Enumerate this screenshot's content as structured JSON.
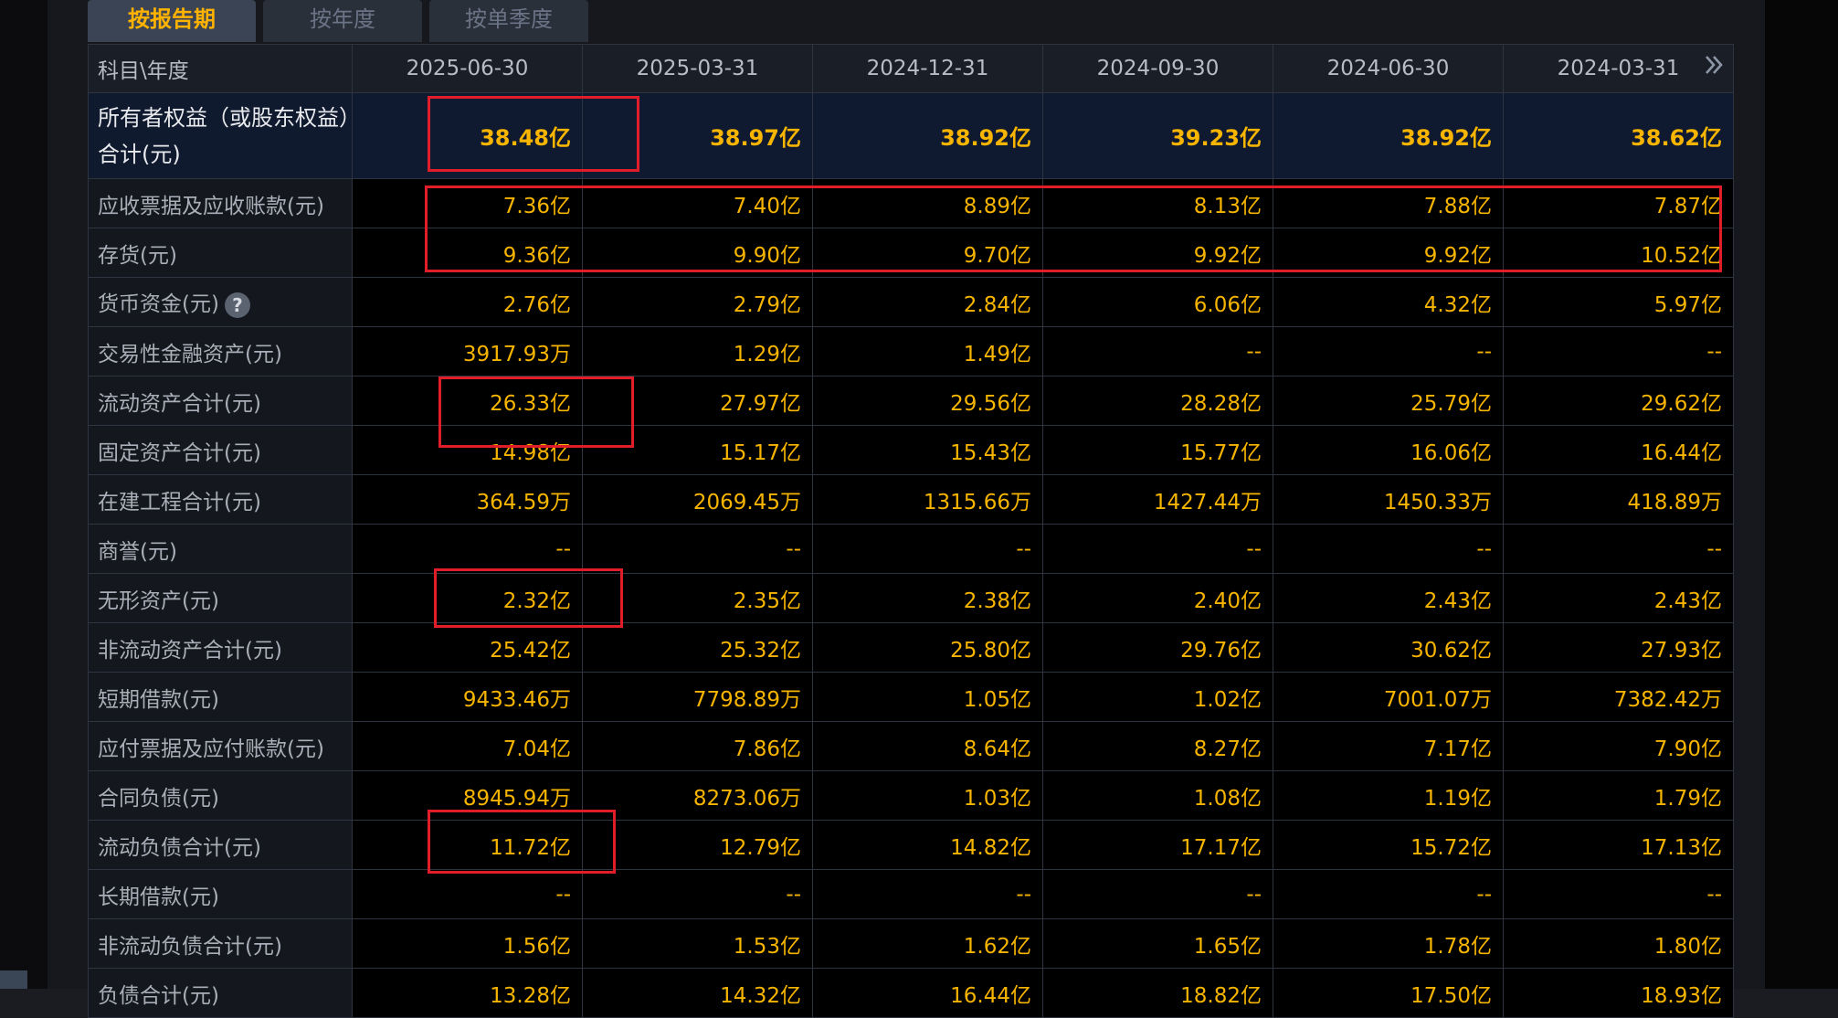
{
  "tabs": [
    "按报告期",
    "按年度",
    "按单季度"
  ],
  "table": {
    "header_label": "科目\\年度",
    "dates": [
      "2025-06-30",
      "2025-03-31",
      "2024-12-31",
      "2024-09-30",
      "2024-06-30",
      "2024-03-31"
    ],
    "more_icon": "double-chevron-right-icon",
    "rows": [
      {
        "label": "所有者权益（或股东权益）合计(元)",
        "values": [
          "38.48亿",
          "38.97亿",
          "38.92亿",
          "39.23亿",
          "38.92亿",
          "38.62亿"
        ]
      },
      {
        "label": "应收票据及应收账款(元)",
        "values": [
          "7.36亿",
          "7.40亿",
          "8.89亿",
          "8.13亿",
          "7.88亿",
          "7.87亿"
        ]
      },
      {
        "label": "存货(元)",
        "values": [
          "9.36亿",
          "9.90亿",
          "9.70亿",
          "9.92亿",
          "9.92亿",
          "10.52亿"
        ]
      },
      {
        "label": "货币资金(元)",
        "values": [
          "2.76亿",
          "2.79亿",
          "2.84亿",
          "6.06亿",
          "4.32亿",
          "5.97亿"
        ]
      },
      {
        "label": "交易性金融资产(元)",
        "values": [
          "3917.93万",
          "1.29亿",
          "1.49亿",
          "--",
          "--",
          "--"
        ]
      },
      {
        "label": "流动资产合计(元)",
        "values": [
          "26.33亿",
          "27.97亿",
          "29.56亿",
          "28.28亿",
          "25.79亿",
          "29.62亿"
        ]
      },
      {
        "label": "固定资产合计(元)",
        "values": [
          "14.98亿",
          "15.17亿",
          "15.43亿",
          "15.77亿",
          "16.06亿",
          "16.44亿"
        ]
      },
      {
        "label": "在建工程合计(元)",
        "values": [
          "364.59万",
          "2069.45万",
          "1315.66万",
          "1427.44万",
          "1450.33万",
          "418.89万"
        ]
      },
      {
        "label": "商誉(元)",
        "values": [
          "--",
          "--",
          "--",
          "--",
          "--",
          "--"
        ]
      },
      {
        "label": "无形资产(元)",
        "values": [
          "2.32亿",
          "2.35亿",
          "2.38亿",
          "2.40亿",
          "2.43亿",
          "2.43亿"
        ]
      },
      {
        "label": "非流动资产合计(元)",
        "values": [
          "25.42亿",
          "25.32亿",
          "25.80亿",
          "29.76亿",
          "30.62亿",
          "27.93亿"
        ]
      },
      {
        "label": "短期借款(元)",
        "values": [
          "9433.46万",
          "7798.89万",
          "1.05亿",
          "1.02亿",
          "7001.07万",
          "7382.42万"
        ]
      },
      {
        "label": "应付票据及应付账款(元)",
        "values": [
          "7.04亿",
          "7.86亿",
          "8.64亿",
          "8.27亿",
          "7.17亿",
          "7.90亿"
        ]
      },
      {
        "label": "合同负债(元)",
        "values": [
          "8945.94万",
          "8273.06万",
          "1.03亿",
          "1.08亿",
          "1.19亿",
          "1.79亿"
        ]
      },
      {
        "label": "流动负债合计(元)",
        "values": [
          "11.72亿",
          "12.79亿",
          "14.82亿",
          "17.17亿",
          "15.72亿",
          "17.13亿"
        ]
      },
      {
        "label": "长期借款(元)",
        "values": [
          "--",
          "--",
          "--",
          "--",
          "--",
          "--"
        ]
      },
      {
        "label": "非流动负债合计(元)",
        "values": [
          "1.56亿",
          "1.53亿",
          "1.62亿",
          "1.65亿",
          "1.78亿",
          "1.80亿"
        ]
      },
      {
        "label": "负债合计(元)",
        "values": [
          "13.28亿",
          "14.32亿",
          "16.44亿",
          "18.82亿",
          "17.50亿",
          "18.93亿"
        ]
      }
    ]
  },
  "help_icon": "question-circle-icon",
  "colors": {
    "value": "#f7b500",
    "label": "#a9aeb8",
    "highlight": "#e11d2a",
    "active_tab": "#ffb300"
  }
}
